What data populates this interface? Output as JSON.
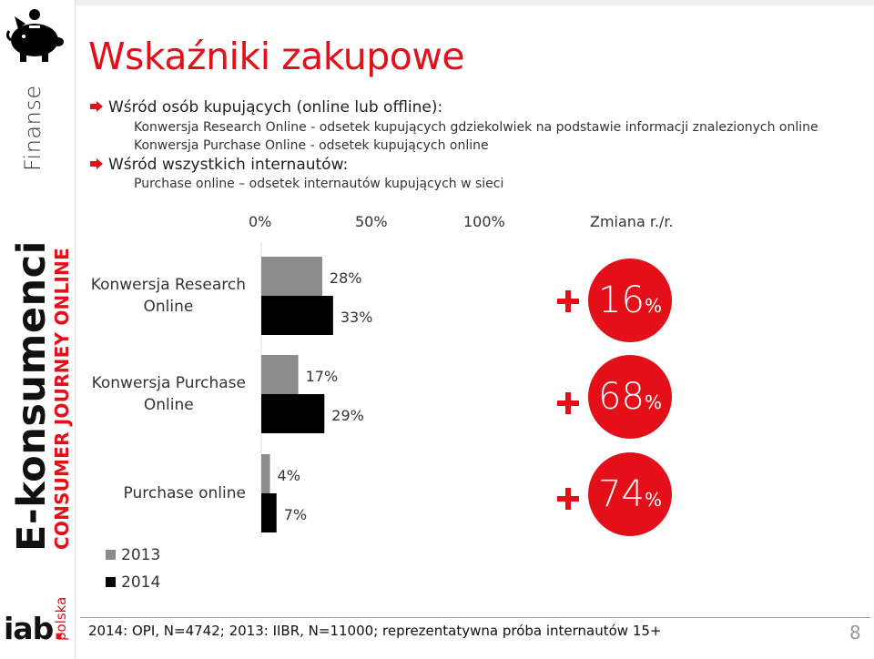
{
  "sidebar": {
    "section": "Finanse",
    "brand": "E-konsumenci",
    "brand_sub": "CONSUMER JOURNEY ONLINE",
    "logo_main": "iab",
    "logo_dot": ".",
    "logo_country": "polska",
    "icon": "piggy-bank-icon"
  },
  "title": "Wskaźniki zakupowe",
  "bullets": [
    {
      "text": "Wśród osób kupujących (online lub offline):",
      "subs": [
        "Konwersja Research Online - odsetek kupujących gdziekolwiek na podstawie informacji znalezionych online",
        "Konwersja Purchase Online - odsetek kupujących online"
      ]
    },
    {
      "text": "Wśród wszystkich internautów:",
      "subs": [
        "Purchase online – odsetek internautów kupujących w sieci"
      ]
    }
  ],
  "chart_data": {
    "type": "bar",
    "orientation": "horizontal",
    "xticks": [
      "0%",
      "50%",
      "100%"
    ],
    "xlim": [
      0,
      100
    ],
    "categories": [
      "Konwersja Research Online",
      "Konwersja Purchase Online",
      "Purchase online"
    ],
    "category_lines": [
      [
        "Konwersja Research",
        "Online"
      ],
      [
        "Konwersja Purchase",
        "Online"
      ],
      [
        "Purchase online"
      ]
    ],
    "series": [
      {
        "name": "2013",
        "values": [
          28,
          17,
          4
        ],
        "labels": [
          "28%",
          "17%",
          "4%"
        ],
        "color": "#8c8c8c"
      },
      {
        "name": "2014",
        "values": [
          33,
          29,
          7
        ],
        "labels": [
          "33%",
          "29%",
          "7%"
        ],
        "color": "#000000"
      }
    ],
    "change_header": "Zmiana r./r.",
    "changes": [
      {
        "sign": "+",
        "value": "16",
        "unit": "%"
      },
      {
        "sign": "+",
        "value": "68",
        "unit": "%"
      },
      {
        "sign": "+",
        "value": "74",
        "unit": "%"
      }
    ],
    "legend_position": "bottom-left"
  },
  "colors": {
    "accent": "#e3101a",
    "series_2013": "#8c8c8c",
    "series_2014": "#000000"
  },
  "footer": "2014: OPI, N=4742; 2013: IIBR, N=11000; reprezentatywna próba internautów 15+",
  "page_number": "8"
}
